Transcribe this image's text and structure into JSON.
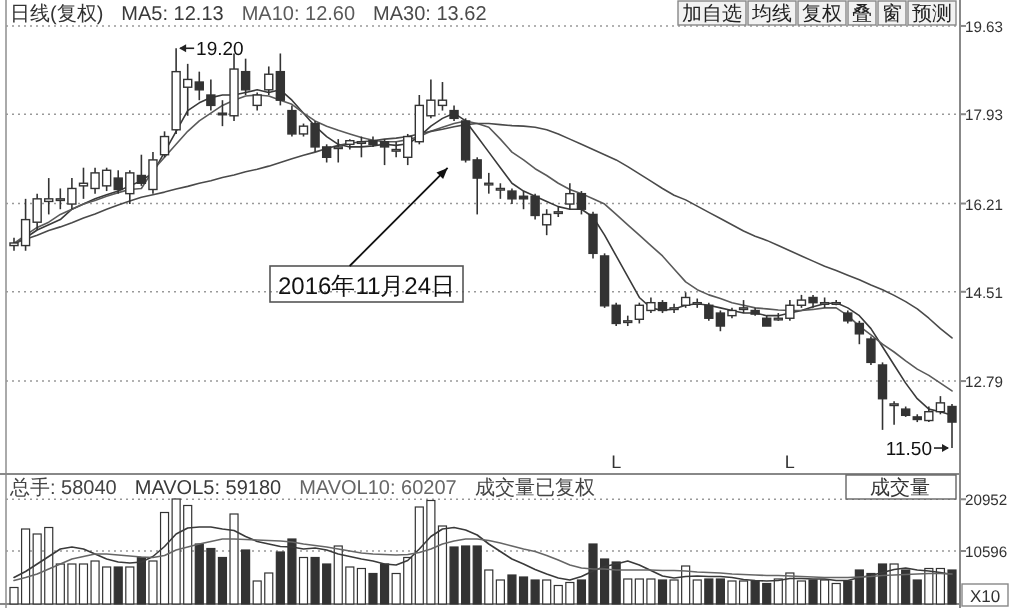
{
  "chart_data": [
    {
      "type": "candlestick",
      "title": "日线(复权)",
      "categories": [
        null,
        null,
        null,
        null,
        null,
        null,
        null,
        null,
        null,
        null,
        null,
        null,
        null,
        null,
        null,
        null,
        null,
        null,
        null,
        null,
        null,
        null,
        null,
        null,
        null,
        null,
        null,
        null,
        null,
        null,
        null,
        null,
        null,
        null,
        null,
        null,
        null,
        null,
        null,
        null,
        null,
        null,
        null,
        null,
        null,
        null,
        null,
        null,
        null,
        null,
        null,
        null,
        null,
        null,
        null,
        null,
        null,
        null,
        null,
        null,
        null,
        null,
        null,
        null,
        null,
        null,
        null,
        null,
        null,
        null,
        null,
        null,
        null,
        null,
        null,
        null,
        null,
        null,
        null,
        null,
        null,
        null
      ],
      "ohlc": [
        [
          15.4,
          15.55,
          15.3,
          15.45
        ],
        [
          15.4,
          16.3,
          15.3,
          15.9
        ],
        [
          15.85,
          16.4,
          15.7,
          16.3
        ],
        [
          16.25,
          16.7,
          16.0,
          16.3
        ],
        [
          16.3,
          16.5,
          16.1,
          16.3
        ],
        [
          16.2,
          16.7,
          16.1,
          16.5
        ],
        [
          16.55,
          16.9,
          16.3,
          16.6
        ],
        [
          16.5,
          16.9,
          16.4,
          16.8
        ],
        [
          16.55,
          16.9,
          16.45,
          16.85
        ],
        [
          16.7,
          16.85,
          16.4,
          16.48
        ],
        [
          16.4,
          16.85,
          16.2,
          16.8
        ],
        [
          16.75,
          17.15,
          16.55,
          16.6
        ],
        [
          16.48,
          17.2,
          16.4,
          17.05
        ],
        [
          17.15,
          17.6,
          17.1,
          17.5
        ],
        [
          17.63,
          19.2,
          17.55,
          18.75
        ],
        [
          18.45,
          18.9,
          17.9,
          18.6
        ],
        [
          18.55,
          18.75,
          18.2,
          18.4
        ],
        [
          18.3,
          18.6,
          18.0,
          18.1
        ],
        [
          17.95,
          18.2,
          17.7,
          17.93
        ],
        [
          17.9,
          19.1,
          17.8,
          18.8
        ],
        [
          18.75,
          19.0,
          18.3,
          18.4
        ],
        [
          18.1,
          18.35,
          18.0,
          18.3
        ],
        [
          18.4,
          18.85,
          18.3,
          18.7
        ],
        [
          18.75,
          19.1,
          18.1,
          18.2
        ],
        [
          18.0,
          18.1,
          17.5,
          17.55
        ],
        [
          17.55,
          17.75,
          17.5,
          17.7
        ],
        [
          17.75,
          17.8,
          17.2,
          17.3
        ],
        [
          17.3,
          17.35,
          17.0,
          17.1
        ],
        [
          17.3,
          17.45,
          17.0,
          17.3
        ],
        [
          17.35,
          17.45,
          17.25,
          17.42
        ],
        [
          17.38,
          17.5,
          17.1,
          17.4
        ],
        [
          17.42,
          17.5,
          17.3,
          17.35
        ],
        [
          17.4,
          17.45,
          16.95,
          17.3
        ],
        [
          17.25,
          17.4,
          17.1,
          17.25
        ],
        [
          17.1,
          17.55,
          16.95,
          17.5
        ],
        [
          17.4,
          18.3,
          17.35,
          18.1
        ],
        [
          17.9,
          18.6,
          17.85,
          18.2
        ],
        [
          18.1,
          18.55,
          18.0,
          18.2
        ],
        [
          18.0,
          18.1,
          17.8,
          17.85
        ],
        [
          17.8,
          17.85,
          17.0,
          17.05
        ],
        [
          17.05,
          17.1,
          16.0,
          16.7
        ],
        [
          16.6,
          16.8,
          16.4,
          16.6
        ],
        [
          16.5,
          16.6,
          16.3,
          16.5
        ],
        [
          16.45,
          16.5,
          16.2,
          16.3
        ],
        [
          16.35,
          16.45,
          16.1,
          16.3
        ],
        [
          16.35,
          16.4,
          15.9,
          15.98
        ],
        [
          15.8,
          16.1,
          15.6,
          16.0
        ],
        [
          16.05,
          16.15,
          15.95,
          16.05
        ],
        [
          16.2,
          16.6,
          16.1,
          16.4
        ],
        [
          16.4,
          16.45,
          16.0,
          16.1
        ],
        [
          16.0,
          16.05,
          15.15,
          15.25
        ],
        [
          15.2,
          15.25,
          14.2,
          14.24
        ],
        [
          14.25,
          14.3,
          13.85,
          13.9
        ],
        [
          13.95,
          14.05,
          13.85,
          13.95
        ],
        [
          13.98,
          14.3,
          13.9,
          14.25
        ],
        [
          14.15,
          14.4,
          14.1,
          14.3
        ],
        [
          14.3,
          14.35,
          14.1,
          14.15
        ],
        [
          14.2,
          14.28,
          14.1,
          14.2
        ],
        [
          14.25,
          14.5,
          14.2,
          14.4
        ],
        [
          14.3,
          14.38,
          14.2,
          14.3
        ],
        [
          14.25,
          14.3,
          13.95,
          14.0
        ],
        [
          14.1,
          14.15,
          13.75,
          13.85
        ],
        [
          14.05,
          14.2,
          14.0,
          14.15
        ],
        [
          14.2,
          14.35,
          14.1,
          14.2
        ],
        [
          14.15,
          14.2,
          14.05,
          14.08
        ],
        [
          14.0,
          14.05,
          13.85,
          13.85
        ],
        [
          14.0,
          14.1,
          13.95,
          14.0
        ],
        [
          14.0,
          14.35,
          13.95,
          14.25
        ],
        [
          14.25,
          14.45,
          14.2,
          14.35
        ],
        [
          14.4,
          14.45,
          14.2,
          14.3
        ],
        [
          14.3,
          14.4,
          14.2,
          14.3
        ],
        [
          14.3,
          14.35,
          14.25,
          14.3
        ],
        [
          14.1,
          14.15,
          13.9,
          13.95
        ],
        [
          13.9,
          13.95,
          13.5,
          13.7
        ],
        [
          13.6,
          13.65,
          13.1,
          13.15
        ],
        [
          13.1,
          13.15,
          11.85,
          12.45
        ],
        [
          12.35,
          12.4,
          11.95,
          12.35
        ],
        [
          12.25,
          12.3,
          12.1,
          12.13
        ],
        [
          12.1,
          12.15,
          12.0,
          12.05
        ],
        [
          12.03,
          12.3,
          12.0,
          12.2
        ],
        [
          12.2,
          12.5,
          12.15,
          12.37
        ],
        [
          12.3,
          12.35,
          11.5,
          12.0
        ]
      ],
      "series": [
        {
          "name": "MA5: 12.13",
          "type": "line",
          "color": "#3a3a3a",
          "values": [
            15.44,
            15.55,
            15.7,
            15.8,
            15.9,
            16.1,
            16.2,
            16.3,
            16.38,
            16.45,
            16.55,
            16.65,
            16.8,
            17.2,
            17.6,
            18.0,
            18.15,
            18.25,
            18.3,
            18.3,
            18.35,
            18.4,
            18.35,
            18.4,
            18.2,
            17.95,
            17.7,
            17.5,
            17.35,
            17.3,
            17.3,
            17.32,
            17.35,
            17.33,
            17.36,
            17.5,
            17.7,
            17.85,
            17.95,
            17.8,
            17.5,
            17.2,
            16.9,
            16.6,
            16.45,
            16.35,
            16.25,
            16.15,
            16.1,
            16.1,
            15.95,
            15.6,
            15.2,
            14.8,
            14.4,
            14.2,
            14.15,
            14.18,
            14.25,
            14.28,
            14.25,
            14.2,
            14.15,
            14.1,
            14.1,
            14.05,
            14.05,
            14.1,
            14.15,
            14.22,
            14.28,
            14.3,
            14.2,
            14.05,
            13.8,
            13.45,
            13.1,
            12.75,
            12.45,
            12.25,
            12.2,
            12.13
          ]
        },
        {
          "name": "MA10: 12.60",
          "type": "line",
          "color": "#5a5a5a",
          "values": [
            15.44,
            15.6,
            15.75,
            15.85,
            16.0,
            16.1,
            16.2,
            16.27,
            16.35,
            16.42,
            16.48,
            16.5,
            16.85,
            17.1,
            17.35,
            17.6,
            17.8,
            17.95,
            18.1,
            18.2,
            18.28,
            18.3,
            18.28,
            18.2,
            18.12,
            17.95,
            17.8,
            17.7,
            17.62,
            17.55,
            17.48,
            17.43,
            17.4,
            17.4,
            17.44,
            17.5,
            17.6,
            17.68,
            17.75,
            17.8,
            17.75,
            17.68,
            17.45,
            17.2,
            17.05,
            16.88,
            16.75,
            16.6,
            16.48,
            16.4,
            16.3,
            16.2,
            16.0,
            15.8,
            15.6,
            15.4,
            15.2,
            14.95,
            14.7,
            14.55,
            14.45,
            14.38,
            14.3,
            14.25,
            14.2,
            14.18,
            14.16,
            14.15,
            14.15,
            14.17,
            14.2,
            14.2,
            14.05,
            13.85,
            13.68,
            13.5,
            13.35,
            13.18,
            13.02,
            12.9,
            12.75,
            12.6
          ]
        },
        {
          "name": "MA30: 13.62",
          "type": "line",
          "color": "#4a4a4a",
          "values": [
            15.44,
            15.52,
            15.6,
            15.69,
            15.76,
            15.84,
            15.93,
            16.01,
            16.1,
            16.18,
            16.26,
            16.33,
            16.38,
            16.43,
            16.49,
            16.54,
            16.6,
            16.65,
            16.71,
            16.76,
            16.82,
            16.87,
            16.93,
            17.0,
            17.07,
            17.14,
            17.2,
            17.27,
            17.33,
            17.37,
            17.4,
            17.42,
            17.45,
            17.47,
            17.5,
            17.55,
            17.6,
            17.64,
            17.69,
            17.73,
            17.75,
            17.75,
            17.73,
            17.71,
            17.7,
            17.68,
            17.63,
            17.55,
            17.45,
            17.35,
            17.25,
            17.15,
            17.05,
            16.92,
            16.78,
            16.64,
            16.5,
            16.37,
            16.28,
            16.16,
            16.04,
            15.92,
            15.8,
            15.68,
            15.58,
            15.5,
            15.4,
            15.3,
            15.2,
            15.1,
            15.0,
            14.92,
            14.83,
            14.74,
            14.64,
            14.55,
            14.44,
            14.32,
            14.18,
            14.0,
            13.8,
            13.62
          ]
        }
      ],
      "ylim": [
        11.0,
        20.13
      ],
      "yticks": [
        19.63,
        17.93,
        16.21,
        14.51,
        12.79
      ],
      "grid": "y",
      "legend": "top left",
      "annotations": [
        "19.20",
        "11.50",
        "2016年11月24日",
        "L",
        "L",
        "加自选",
        "均线",
        "复权",
        "叠",
        "窗",
        "预测"
      ]
    },
    {
      "type": "bar",
      "categories": [
        null,
        null,
        null,
        null,
        null,
        null,
        null,
        null,
        null,
        null,
        null,
        null,
        null,
        null,
        null,
        null,
        null,
        null,
        null,
        null,
        null,
        null,
        null,
        null,
        null,
        null,
        null,
        null,
        null,
        null,
        null,
        null,
        null,
        null,
        null,
        null,
        null,
        null,
        null,
        null,
        null,
        null,
        null,
        null,
        null,
        null,
        null,
        null,
        null,
        null,
        null,
        null,
        null,
        null,
        null,
        null,
        null,
        null,
        null,
        null,
        null,
        null,
        null,
        null,
        null,
        null,
        null,
        null,
        null,
        null,
        null,
        null,
        null,
        null,
        null,
        null,
        null,
        null,
        null,
        null,
        null,
        null
      ],
      "values": [
        3300,
        15000,
        14000,
        15300,
        8000,
        8000,
        8000,
        8600,
        7400,
        7400,
        7400,
        9300,
        8600,
        18300,
        21000,
        19700,
        12000,
        11100,
        9300,
        18000,
        10800,
        4600,
        6200,
        10400,
        13000,
        9300,
        9300,
        8000,
        11600,
        7400,
        7100,
        6100,
        8000,
        6100,
        9300,
        19400,
        20700,
        15600,
        11400,
        11600,
        11600,
        6800,
        4800,
        5800,
        5400,
        4800,
        4800,
        3700,
        4300,
        4800,
        12000,
        9000,
        8400,
        5000,
        5000,
        5000,
        4800,
        4800,
        7600,
        4800,
        5000,
        5000,
        4600,
        4600,
        4600,
        4100,
        5000,
        6200,
        4600,
        4800,
        4800,
        4100,
        4600,
        6800,
        6100,
        8000,
        8000,
        6800,
        4800,
        7100,
        7100,
        6800
      ],
      "colors": [
        "#ffffff",
        "#ffffff",
        "#ffffff",
        "#ffffff",
        "#ffffff",
        "#ffffff",
        "#ffffff",
        "#ffffff",
        "#ffffff",
        "#333333",
        "#ffffff",
        "#333333",
        "#ffffff",
        "#ffffff",
        "#ffffff",
        "#ffffff",
        "#333333",
        "#333333",
        "#333333",
        "#ffffff",
        "#333333",
        "#ffffff",
        "#ffffff",
        "#333333",
        "#333333",
        "#ffffff",
        "#333333",
        "#333333",
        "#ffffff",
        "#ffffff",
        "#ffffff",
        "#333333",
        "#333333",
        "#ffffff",
        "#ffffff",
        "#ffffff",
        "#ffffff",
        "#ffffff",
        "#333333",
        "#333333",
        "#333333",
        "#ffffff",
        "#ffffff",
        "#333333",
        "#333333",
        "#333333",
        "#ffffff",
        "#ffffff",
        "#ffffff",
        "#333333",
        "#333333",
        "#333333",
        "#333333",
        "#ffffff",
        "#ffffff",
        "#ffffff",
        "#333333",
        "#ffffff",
        "#ffffff",
        "#ffffff",
        "#333333",
        "#333333",
        "#ffffff",
        "#ffffff",
        "#333333",
        "#333333",
        "#ffffff",
        "#ffffff",
        "#ffffff",
        "#333333",
        "#ffffff",
        "#ffffff",
        "#333333",
        "#333333",
        "#333333",
        "#333333",
        "#ffffff",
        "#333333",
        "#333333",
        "#ffffff",
        "#ffffff",
        "#333333"
      ],
      "series": [
        {
          "name": "MAVOL5: 59180",
          "type": "line",
          "color": "#3a3a3a",
          "values": [
            5300,
            6500,
            8000,
            9500,
            11000,
            11400,
            11000,
            10000,
            9000,
            8400,
            8200,
            8400,
            9500,
            11500,
            14000,
            15200,
            15400,
            15400,
            15000,
            14700,
            13500,
            12500,
            12000,
            11500,
            11400,
            11000,
            11200,
            10800,
            10000,
            9500,
            9000,
            8600,
            8000,
            7800,
            8700,
            11000,
            13500,
            15000,
            15300,
            14800,
            13800,
            12000,
            10500,
            9000,
            8000,
            6900,
            6000,
            5200,
            4800,
            5500,
            6600,
            7500,
            8000,
            8600,
            7800,
            6700,
            5600,
            5200,
            5500,
            5600,
            5500,
            5500,
            5300,
            4900,
            4700,
            4600,
            4700,
            5100,
            5100,
            5000,
            5000,
            4700,
            4700,
            5300,
            5700,
            6300,
            6900,
            7200,
            6800,
            6600,
            6300,
            5900
          ]
        },
        {
          "name": "MAVOL10: 60207",
          "type": "line",
          "color": "#666666",
          "values": [
            4700,
            5300,
            6000,
            7000,
            8000,
            9000,
            9500,
            10000,
            10000,
            9800,
            9600,
            9400,
            9300,
            9700,
            10800,
            11400,
            12000,
            12500,
            13000,
            13000,
            12900,
            12800,
            12700,
            12600,
            12400,
            12000,
            11700,
            11400,
            11000,
            10600,
            10200,
            10000,
            9900,
            9800,
            9900,
            10300,
            11000,
            12000,
            12600,
            13000,
            13000,
            12700,
            12200,
            11600,
            11000,
            10500,
            9700,
            8800,
            7800,
            7200,
            7000,
            7000,
            6800,
            6800,
            6800,
            6800,
            6700,
            6700,
            6600,
            6400,
            6300,
            6200,
            6000,
            5900,
            5800,
            5700,
            5700,
            5600,
            5500,
            5400,
            5300,
            5300,
            5300,
            5400,
            5500,
            5700,
            5800,
            5900,
            6000,
            6100,
            6100,
            6000
          ]
        }
      ],
      "ylim": [
        0,
        24800
      ],
      "yticks": [
        20952,
        10596
      ],
      "grid": "y",
      "legend": "top left",
      "annotations": [
        "总手: 58040",
        "成交量已复权",
        "成交量",
        "X10"
      ]
    }
  ]
}
